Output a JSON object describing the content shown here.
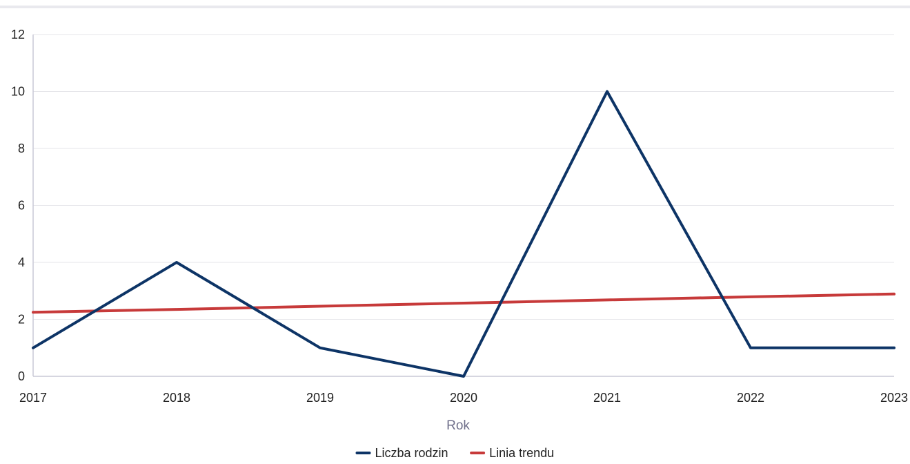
{
  "chart_data": {
    "type": "line",
    "x": [
      "2017",
      "2018",
      "2019",
      "2020",
      "2021",
      "2022",
      "2023"
    ],
    "xlabel": "Rok",
    "ylabel": "",
    "ylim": [
      0,
      12
    ],
    "yticks": [
      0,
      2,
      4,
      6,
      8,
      10,
      12
    ],
    "grid": true,
    "legend_position": "bottom-center",
    "series": [
      {
        "name": "Liczba rodzin",
        "color": "#0d3466",
        "values": [
          1,
          4,
          1,
          0,
          10,
          1,
          1
        ]
      },
      {
        "name": "Linia trendu",
        "color": "#c73a3a",
        "values": [
          2.25,
          2.35,
          2.46,
          2.57,
          2.68,
          2.79,
          2.89
        ]
      }
    ]
  }
}
